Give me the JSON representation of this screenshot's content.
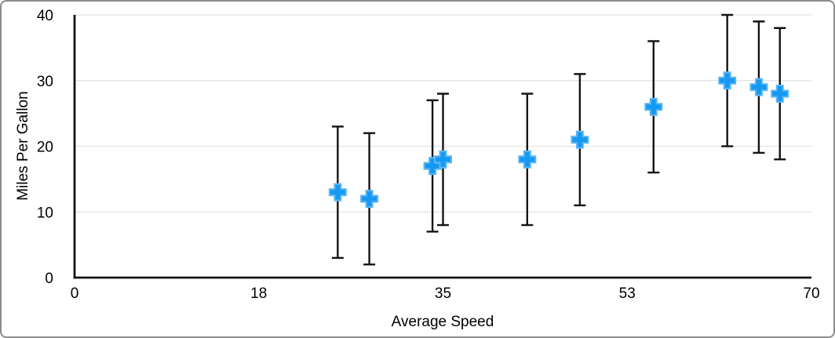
{
  "chart_data": {
    "type": "scatter",
    "title": "",
    "xlabel": "Average Speed",
    "ylabel": "Miles Per Gallon",
    "xlim": [
      0,
      70
    ],
    "ylim": [
      0,
      40
    ],
    "grid": "horizontal-only",
    "legend": "none",
    "x_ticks": {
      "values": [
        0,
        17.5,
        35,
        52.5,
        70
      ],
      "labels": [
        "0",
        "18",
        "35",
        "53",
        "70"
      ]
    },
    "y_ticks": {
      "values": [
        0,
        10,
        20,
        30,
        40
      ],
      "labels": [
        "0",
        "10",
        "20",
        "30",
        "40"
      ]
    },
    "series": [
      {
        "name": "Miles Per Gallon",
        "marker": "plus",
        "marker_color": "#1699f2",
        "marker_edge_color": "#5cb7f4",
        "error_bar_color": "#141414",
        "points": [
          {
            "x": 25,
            "y": 13,
            "error_plus": 10,
            "error_minus": 10
          },
          {
            "x": 28,
            "y": 12,
            "error_plus": 10,
            "error_minus": 10
          },
          {
            "x": 34,
            "y": 17,
            "error_plus": 10,
            "error_minus": 10
          },
          {
            "x": 35,
            "y": 18,
            "error_plus": 10,
            "error_minus": 10
          },
          {
            "x": 43,
            "y": 18,
            "error_plus": 10,
            "error_minus": 10
          },
          {
            "x": 48,
            "y": 21,
            "error_plus": 10,
            "error_minus": 10
          },
          {
            "x": 55,
            "y": 26,
            "error_plus": 10,
            "error_minus": 10
          },
          {
            "x": 62,
            "y": 30,
            "error_plus": 10,
            "error_minus": 10
          },
          {
            "x": 65,
            "y": 29,
            "error_plus": 10,
            "error_minus": 10
          },
          {
            "x": 67,
            "y": 28,
            "error_plus": 10,
            "error_minus": 10
          }
        ]
      }
    ],
    "colors": {
      "axis": "#141414",
      "grid": "#e3e3e3",
      "text": "#000000",
      "marker": "#1699f2",
      "frame_border": "#8b8b8b",
      "background": "#ffffff"
    }
  }
}
